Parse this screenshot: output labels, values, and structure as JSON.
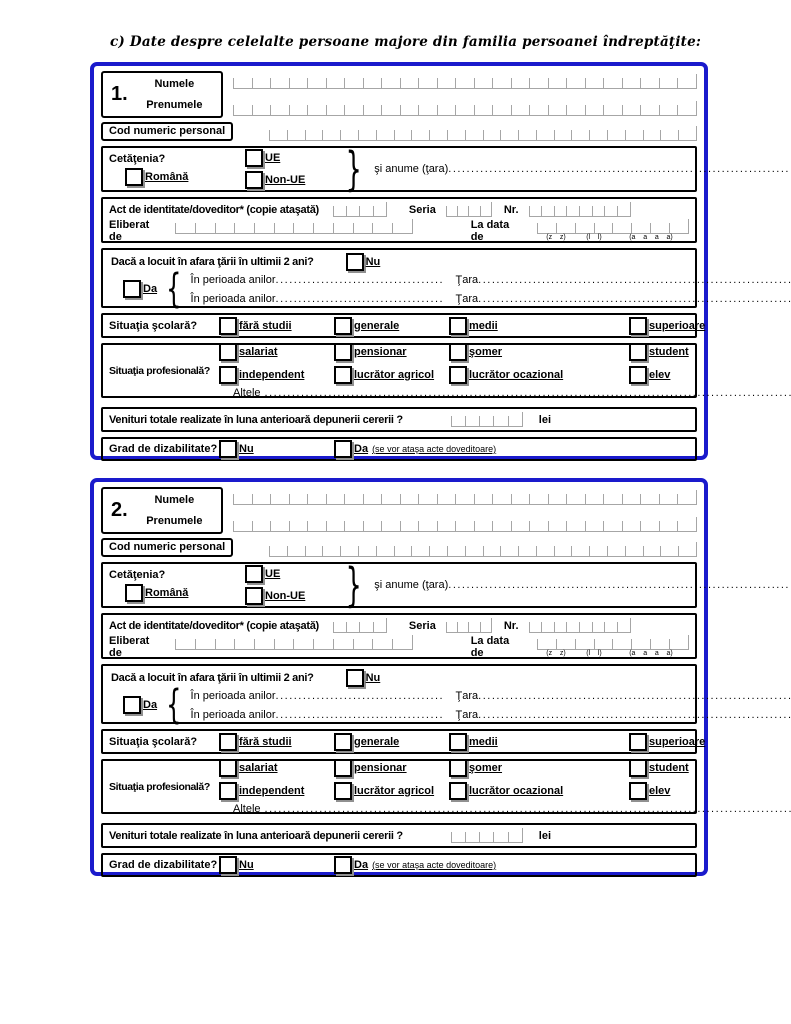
{
  "page": {
    "title": "c) Date despre celelalte persoane majore din familia persoanei îndreptăţite:"
  },
  "colors": {
    "frame_blue": "#1a1acc",
    "comb_gray": "#a6a6a6",
    "shadow_gray": "#909090"
  },
  "dots": {
    "long": "......................................................................................................................................................"
  },
  "labels": {
    "numele": "Numele",
    "prenumele": "Prenumele",
    "cnp": "Cod numeric personal",
    "cetatenia": "Cetăţenia?",
    "romana": "Română",
    "ue": "UE",
    "non_ue": "Non-UE",
    "si_anume": "şi anume (ţara) ",
    "act": "Act de identitate/doveditor* (copie ataşată)",
    "seria": "Seria",
    "nr": "Nr.",
    "eliberat": "Eliberat de",
    "la_data": "La data de",
    "date_zz": "(z    z)",
    "date_ll": "(l    l)",
    "date_aaaa": "(a    a    a    a)",
    "locuit_q": "Dacă a locuit în afara ţării în ultimii 2 ani?",
    "nu": "Nu",
    "da": "Da",
    "perioada": "În perioada anilor ",
    "tara": "Ţara ",
    "scolara": "Situaţia şcolară?",
    "scolara_opts": [
      "fără studii",
      "generale",
      "medii",
      "superioare"
    ],
    "profesionala": "Situaţia profesională?",
    "prof_row1": [
      "salariat",
      "pensionar",
      "şomer",
      "student"
    ],
    "prof_row2": [
      "independent",
      "lucrător agricol",
      "lucrător ocazional",
      "elev"
    ],
    "altele": "Altele ",
    "venituri": "Venituri totale realizate în luna anterioară depunerii cererii ?",
    "lei": "lei",
    "grad": "Grad de dizabilitate?",
    "da_note": "(se vor ataşa acte doveditoare)",
    "brace_close": "}",
    "brace_open": "{"
  },
  "sections": [
    {
      "number": "1."
    },
    {
      "number": "2."
    }
  ]
}
